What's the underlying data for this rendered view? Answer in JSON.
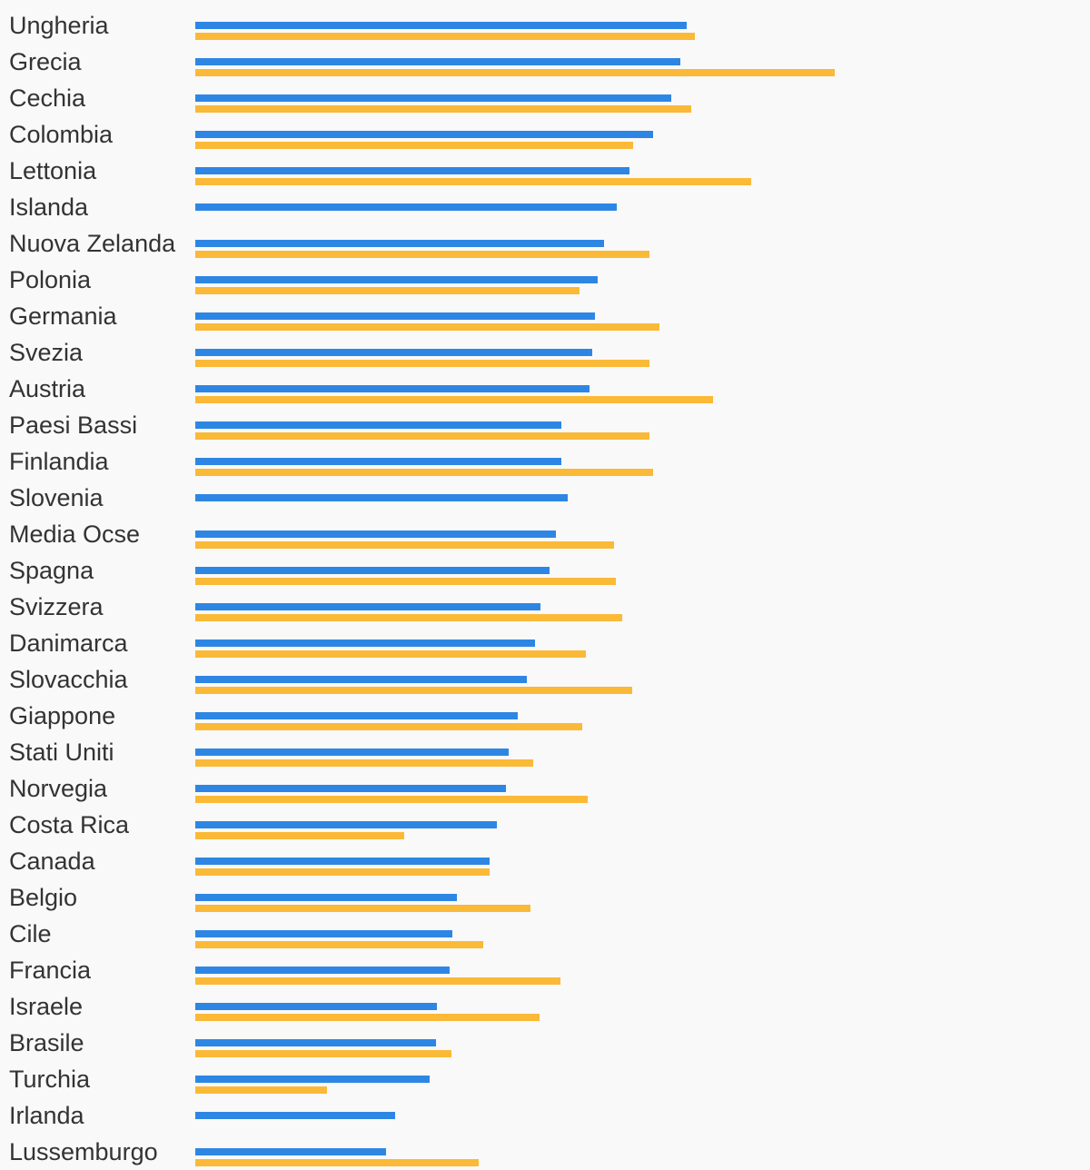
{
  "chart_data": {
    "type": "bar",
    "orientation": "horizontal",
    "categories": [
      "Ungheria",
      "Grecia",
      "Cechia",
      "Colombia",
      "Lettonia",
      "Islanda",
      "Nuova Zelanda",
      "Polonia",
      "Germania",
      "Svezia",
      "Austria",
      "Paesi Bassi",
      "Finlandia",
      "Slovenia",
      "Media Ocse",
      "Spagna",
      "Svizzera",
      "Danimarca",
      "Slovacchia",
      "Giappone",
      "Stati Uniti",
      "Norvegia",
      "Costa Rica",
      "Canada",
      "Belgio",
      "Cile",
      "Francia",
      "Israele",
      "Brasile",
      "Turchia",
      "Irlanda",
      "Lussemburgo"
    ],
    "series": [
      {
        "color": "#2e86e4",
        "values": [
          541,
          534,
          524,
          504,
          478,
          464,
          450,
          443,
          440,
          437,
          434,
          403,
          403,
          410,
          397,
          390,
          380,
          374,
          365,
          355,
          345,
          342,
          332,
          324,
          288,
          283,
          280,
          266,
          265,
          258,
          220,
          210
        ]
      },
      {
        "color": "#fbb938",
        "values": [
          550,
          704,
          546,
          482,
          612,
          null,
          500,
          423,
          511,
          500,
          570,
          500,
          504,
          null,
          461,
          463,
          470,
          430,
          481,
          426,
          372,
          432,
          230,
          324,
          369,
          317,
          402,
          379,
          282,
          145,
          null,
          312
        ]
      }
    ],
    "xlim": [
      0,
      985
    ],
    "grid": false,
    "legend": "none",
    "title": "",
    "xlabel": "",
    "ylabel": ""
  }
}
